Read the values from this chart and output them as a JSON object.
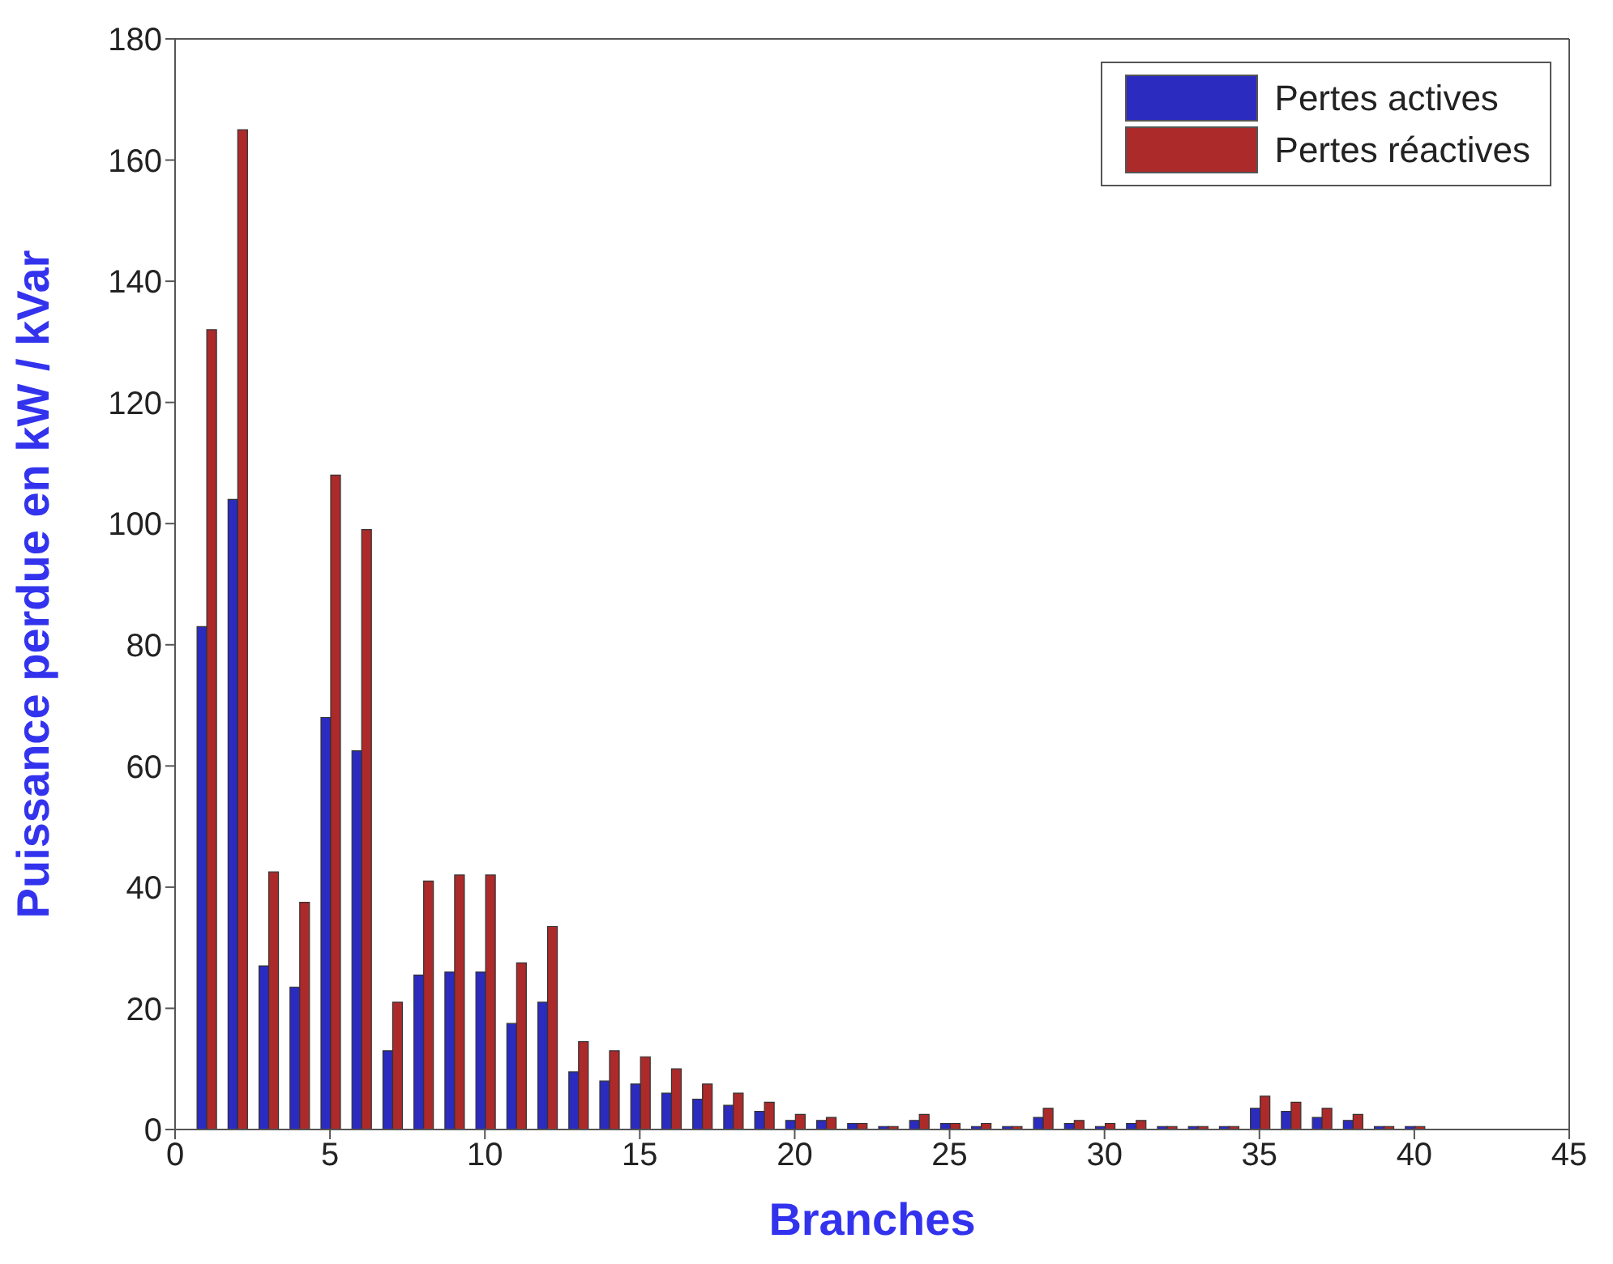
{
  "chart_data": {
    "type": "bar",
    "xlabel": "Branches",
    "ylabel": "Puissance perdue en kW / kVar",
    "x": [
      1,
      2,
      3,
      4,
      5,
      6,
      7,
      8,
      9,
      10,
      11,
      12,
      13,
      14,
      15,
      16,
      17,
      18,
      19,
      20,
      21,
      22,
      23,
      24,
      25,
      26,
      27,
      28,
      29,
      30,
      31,
      32,
      33,
      34,
      35,
      36,
      37,
      38,
      39,
      40
    ],
    "series": [
      {
        "name": "Pertes actives",
        "color": "#2b2bbf",
        "values": [
          83,
          104,
          27,
          23.5,
          68,
          62.5,
          13,
          25.5,
          26,
          26,
          17.5,
          21,
          9.5,
          8,
          7.5,
          6,
          5,
          4,
          3,
          1.5,
          1.5,
          1,
          0.5,
          1.5,
          1,
          0.5,
          0.5,
          2,
          1,
          0.5,
          1,
          0.5,
          0.5,
          0.5,
          3.5,
          3,
          2,
          1.5,
          0.5,
          0.5
        ]
      },
      {
        "name": "Pertes réactives",
        "color": "#ac2a2a",
        "values": [
          132,
          165,
          42.5,
          37.5,
          108,
          99,
          21,
          41,
          42,
          42,
          27.5,
          33.5,
          14.5,
          13,
          12,
          10,
          7.5,
          6,
          4.5,
          2.5,
          2,
          1,
          0.5,
          2.5,
          1,
          1,
          0.5,
          3.5,
          1.5,
          1,
          1.5,
          0.5,
          0.5,
          0.5,
          5.5,
          4.5,
          3.5,
          2.5,
          0.5,
          0.5
        ]
      }
    ],
    "xlim": [
      0,
      45
    ],
    "xticks": [
      0,
      5,
      10,
      15,
      20,
      25,
      30,
      35,
      40,
      45
    ],
    "ylim": [
      0,
      180
    ],
    "yticks": [
      0,
      20,
      40,
      60,
      80,
      100,
      120,
      140,
      160,
      180
    ],
    "grid": false,
    "legend": "top right"
  }
}
